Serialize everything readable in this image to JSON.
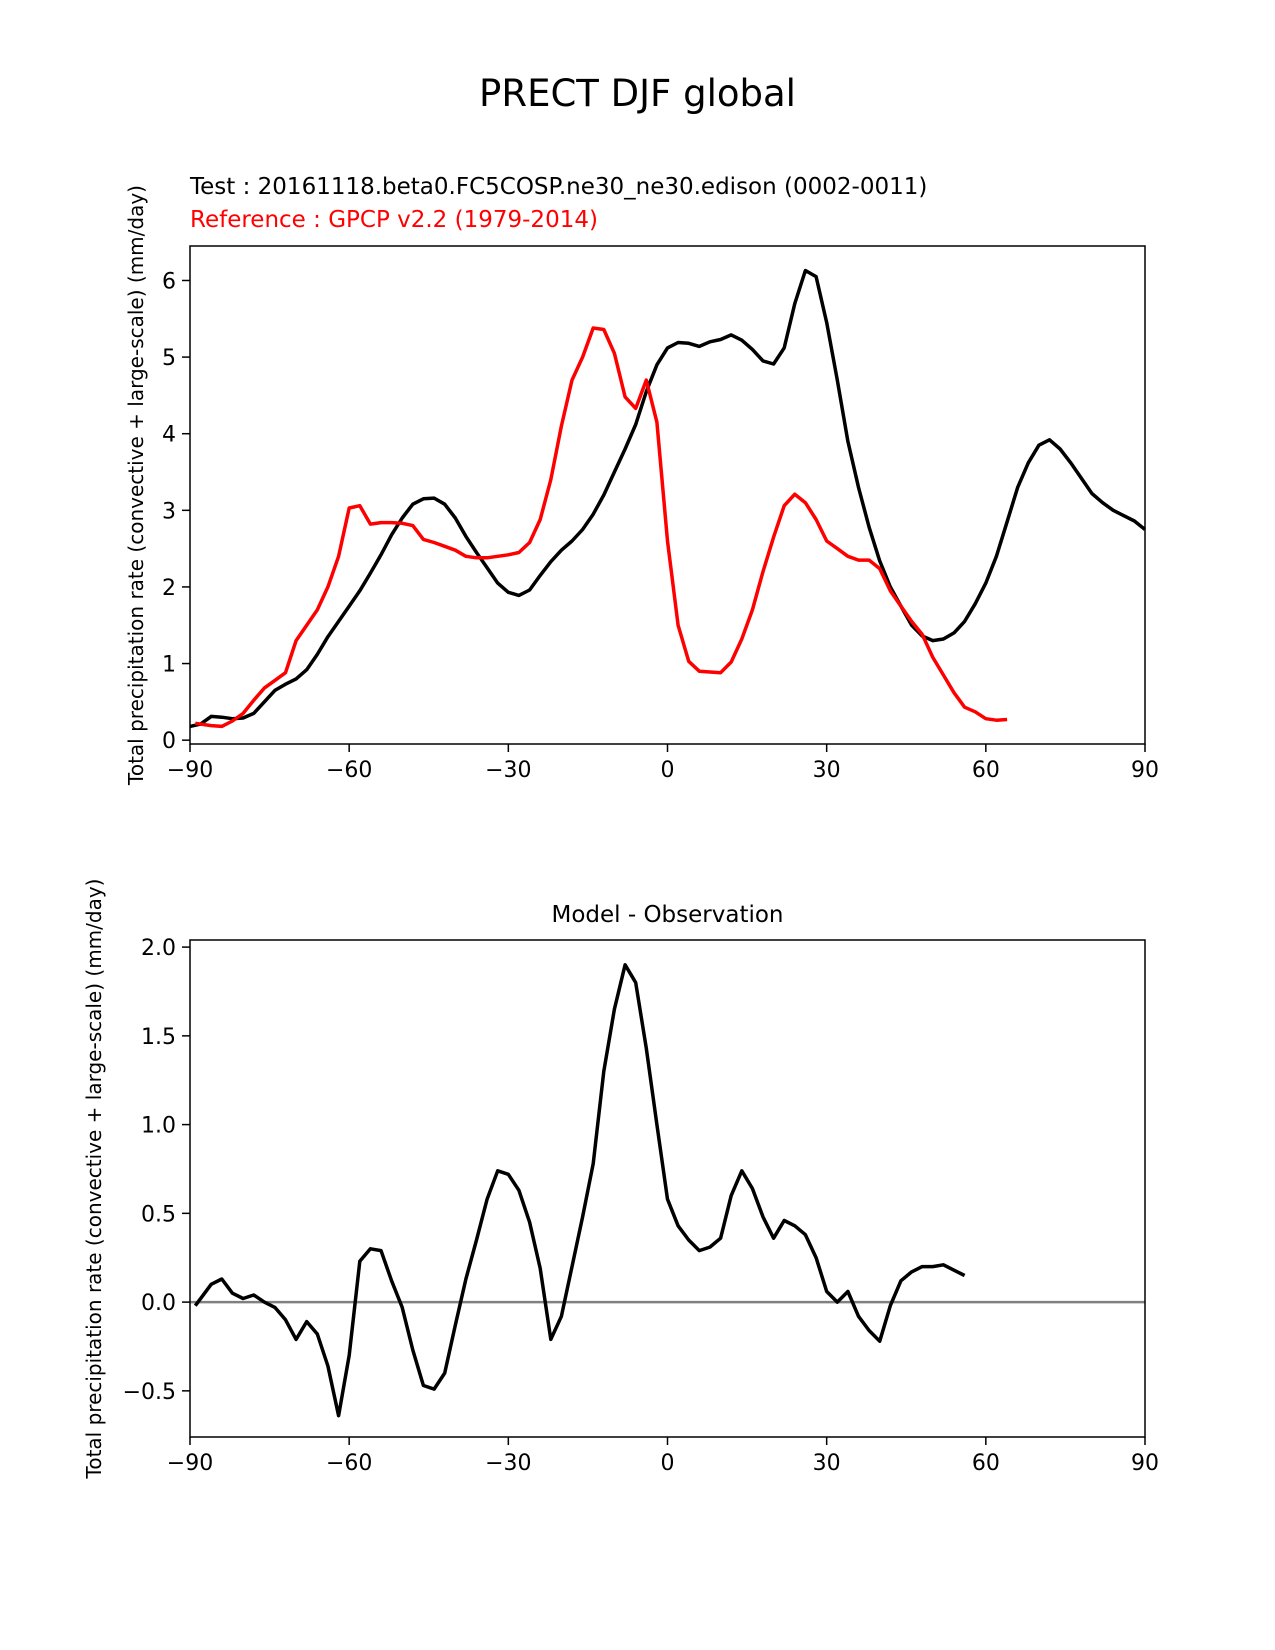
{
  "figure": {
    "title": "PRECT DJF global"
  },
  "chart_data": [
    {
      "type": "line",
      "test_label": "Test : 20161118.beta0.FC5COSP.ne30_ne30.edison (0002-0011)",
      "reference_label": "Reference : GPCP v2.2 (1979-2014)",
      "ylabel": "Total precipitation rate (convective + large-scale) (mm/day)",
      "xlim": [
        -90,
        90
      ],
      "ylim": [
        -0.05,
        6.45
      ],
      "xticks": [
        -90,
        -60,
        -30,
        0,
        30,
        60,
        90
      ],
      "xtick_labels": [
        "−90",
        "−60",
        "−30",
        "0",
        "30",
        "60",
        "90"
      ],
      "yticks": [
        0,
        1,
        2,
        3,
        4,
        5,
        6
      ],
      "ytick_labels": [
        "0",
        "1",
        "2",
        "3",
        "4",
        "5",
        "6"
      ],
      "grid": false,
      "series": [
        {
          "color": "#000000",
          "points": [
            [
              -90,
              0.18
            ],
            [
              -88,
              0.21
            ],
            [
              -86,
              0.31
            ],
            [
              -84,
              0.3
            ],
            [
              -82,
              0.28
            ],
            [
              -80,
              0.29
            ],
            [
              -78,
              0.35
            ],
            [
              -76,
              0.5
            ],
            [
              -74,
              0.65
            ],
            [
              -72,
              0.73
            ],
            [
              -70,
              0.8
            ],
            [
              -68,
              0.92
            ],
            [
              -66,
              1.12
            ],
            [
              -64,
              1.35
            ],
            [
              -62,
              1.55
            ],
            [
              -60,
              1.75
            ],
            [
              -58,
              1.95
            ],
            [
              -56,
              2.18
            ],
            [
              -54,
              2.42
            ],
            [
              -52,
              2.68
            ],
            [
              -50,
              2.9
            ],
            [
              -48,
              3.08
            ],
            [
              -46,
              3.15
            ],
            [
              -44,
              3.16
            ],
            [
              -42,
              3.08
            ],
            [
              -40,
              2.9
            ],
            [
              -38,
              2.66
            ],
            [
              -36,
              2.45
            ],
            [
              -34,
              2.25
            ],
            [
              -32,
              2.05
            ],
            [
              -30,
              1.93
            ],
            [
              -28,
              1.89
            ],
            [
              -26,
              1.96
            ],
            [
              -24,
              2.15
            ],
            [
              -22,
              2.33
            ],
            [
              -20,
              2.48
            ],
            [
              -18,
              2.6
            ],
            [
              -16,
              2.75
            ],
            [
              -14,
              2.95
            ],
            [
              -12,
              3.2
            ],
            [
              -10,
              3.5
            ],
            [
              -8,
              3.8
            ],
            [
              -6,
              4.12
            ],
            [
              -4,
              4.55
            ],
            [
              -2,
              4.9
            ],
            [
              0,
              5.12
            ],
            [
              2,
              5.19
            ],
            [
              4,
              5.18
            ],
            [
              6,
              5.14
            ],
            [
              8,
              5.2
            ],
            [
              10,
              5.23
            ],
            [
              12,
              5.29
            ],
            [
              14,
              5.22
            ],
            [
              16,
              5.1
            ],
            [
              18,
              4.95
            ],
            [
              20,
              4.91
            ],
            [
              22,
              5.12
            ],
            [
              24,
              5.7
            ],
            [
              26,
              6.13
            ],
            [
              28,
              6.05
            ],
            [
              30,
              5.45
            ],
            [
              32,
              4.7
            ],
            [
              34,
              3.9
            ],
            [
              36,
              3.3
            ],
            [
              38,
              2.78
            ],
            [
              40,
              2.34
            ],
            [
              42,
              2.0
            ],
            [
              44,
              1.75
            ],
            [
              46,
              1.5
            ],
            [
              48,
              1.36
            ],
            [
              50,
              1.3
            ],
            [
              52,
              1.32
            ],
            [
              54,
              1.4
            ],
            [
              56,
              1.55
            ],
            [
              58,
              1.78
            ],
            [
              60,
              2.05
            ],
            [
              62,
              2.4
            ],
            [
              64,
              2.85
            ],
            [
              66,
              3.3
            ],
            [
              68,
              3.62
            ],
            [
              70,
              3.85
            ],
            [
              72,
              3.92
            ],
            [
              74,
              3.8
            ],
            [
              76,
              3.62
            ],
            [
              78,
              3.42
            ],
            [
              80,
              3.22
            ],
            [
              82,
              3.1
            ],
            [
              84,
              3.0
            ],
            [
              86,
              2.93
            ],
            [
              88,
              2.86
            ],
            [
              90,
              2.75
            ]
          ]
        },
        {
          "color": "#ff0000",
          "points": [
            [
              -89,
              0.22
            ],
            [
              -86,
              0.19
            ],
            [
              -84,
              0.18
            ],
            [
              -82,
              0.25
            ],
            [
              -80,
              0.35
            ],
            [
              -78,
              0.52
            ],
            [
              -76,
              0.68
            ],
            [
              -74,
              0.78
            ],
            [
              -72,
              0.88
            ],
            [
              -70,
              1.3
            ],
            [
              -68,
              1.5
            ],
            [
              -66,
              1.7
            ],
            [
              -64,
              2.0
            ],
            [
              -62,
              2.4
            ],
            [
              -60,
              3.03
            ],
            [
              -58,
              3.06
            ],
            [
              -56,
              2.82
            ],
            [
              -54,
              2.84
            ],
            [
              -52,
              2.84
            ],
            [
              -50,
              2.83
            ],
            [
              -48,
              2.8
            ],
            [
              -46,
              2.62
            ],
            [
              -44,
              2.58
            ],
            [
              -42,
              2.53
            ],
            [
              -40,
              2.48
            ],
            [
              -38,
              2.4
            ],
            [
              -36,
              2.38
            ],
            [
              -34,
              2.38
            ],
            [
              -32,
              2.4
            ],
            [
              -30,
              2.42
            ],
            [
              -28,
              2.45
            ],
            [
              -26,
              2.58
            ],
            [
              -24,
              2.88
            ],
            [
              -22,
              3.4
            ],
            [
              -20,
              4.1
            ],
            [
              -18,
              4.7
            ],
            [
              -16,
              5.0
            ],
            [
              -14,
              5.38
            ],
            [
              -12,
              5.36
            ],
            [
              -10,
              5.05
            ],
            [
              -8,
              4.48
            ],
            [
              -6,
              4.33
            ],
            [
              -4,
              4.7
            ],
            [
              -2,
              4.15
            ],
            [
              0,
              2.6
            ],
            [
              2,
              1.5
            ],
            [
              4,
              1.03
            ],
            [
              6,
              0.9
            ],
            [
              8,
              0.89
            ],
            [
              10,
              0.88
            ],
            [
              12,
              1.02
            ],
            [
              14,
              1.32
            ],
            [
              16,
              1.7
            ],
            [
              18,
              2.2
            ],
            [
              20,
              2.65
            ],
            [
              22,
              3.06
            ],
            [
              24,
              3.21
            ],
            [
              26,
              3.1
            ],
            [
              28,
              2.88
            ],
            [
              30,
              2.6
            ],
            [
              32,
              2.5
            ],
            [
              34,
              2.4
            ],
            [
              36,
              2.35
            ],
            [
              38,
              2.35
            ],
            [
              40,
              2.24
            ],
            [
              42,
              1.95
            ],
            [
              44,
              1.75
            ],
            [
              46,
              1.55
            ],
            [
              48,
              1.38
            ],
            [
              50,
              1.08
            ],
            [
              52,
              0.85
            ],
            [
              54,
              0.62
            ],
            [
              56,
              0.43
            ],
            [
              58,
              0.37
            ],
            [
              60,
              0.28
            ],
            [
              62,
              0.26
            ],
            [
              64,
              0.27
            ]
          ]
        }
      ]
    },
    {
      "type": "line",
      "title": "Model - Observation",
      "ylabel": "Total precipitation rate (convective + large-scale) (mm/day)",
      "xlim": [
        -90,
        90
      ],
      "ylim": [
        -0.76,
        2.04
      ],
      "xticks": [
        -90,
        -60,
        -30,
        0,
        30,
        60,
        90
      ],
      "xtick_labels": [
        "−90",
        "−60",
        "−30",
        "0",
        "30",
        "60",
        "90"
      ],
      "yticks": [
        -0.5,
        0.0,
        0.5,
        1.0,
        1.5,
        2.0
      ],
      "ytick_labels": [
        "−0.5",
        "0.0",
        "0.5",
        "1.0",
        "1.5",
        "2.0"
      ],
      "grid": false,
      "zero_line_color": "#808080",
      "series": [
        {
          "color": "#000000",
          "points": [
            [
              -89,
              -0.02
            ],
            [
              -86,
              0.1
            ],
            [
              -84,
              0.13
            ],
            [
              -82,
              0.05
            ],
            [
              -80,
              0.02
            ],
            [
              -78,
              0.04
            ],
            [
              -76,
              0.0
            ],
            [
              -74,
              -0.03
            ],
            [
              -72,
              -0.1
            ],
            [
              -70,
              -0.21
            ],
            [
              -68,
              -0.11
            ],
            [
              -66,
              -0.18
            ],
            [
              -64,
              -0.36
            ],
            [
              -62,
              -0.64
            ],
            [
              -60,
              -0.3
            ],
            [
              -58,
              0.23
            ],
            [
              -56,
              0.3
            ],
            [
              -54,
              0.29
            ],
            [
              -52,
              0.12
            ],
            [
              -50,
              -0.03
            ],
            [
              -48,
              -0.27
            ],
            [
              -46,
              -0.47
            ],
            [
              -44,
              -0.49
            ],
            [
              -42,
              -0.4
            ],
            [
              -40,
              -0.13
            ],
            [
              -38,
              0.13
            ],
            [
              -36,
              0.35
            ],
            [
              -34,
              0.58
            ],
            [
              -32,
              0.74
            ],
            [
              -30,
              0.72
            ],
            [
              -28,
              0.63
            ],
            [
              -26,
              0.45
            ],
            [
              -24,
              0.19
            ],
            [
              -22,
              -0.21
            ],
            [
              -20,
              -0.08
            ],
            [
              -18,
              0.2
            ],
            [
              -16,
              0.48
            ],
            [
              -14,
              0.78
            ],
            [
              -12,
              1.3
            ],
            [
              -10,
              1.65
            ],
            [
              -8,
              1.9
            ],
            [
              -6,
              1.8
            ],
            [
              -4,
              1.43
            ],
            [
              -2,
              1.0
            ],
            [
              0,
              0.58
            ],
            [
              2,
              0.43
            ],
            [
              4,
              0.35
            ],
            [
              6,
              0.29
            ],
            [
              8,
              0.31
            ],
            [
              10,
              0.36
            ],
            [
              12,
              0.6
            ],
            [
              14,
              0.74
            ],
            [
              16,
              0.64
            ],
            [
              18,
              0.48
            ],
            [
              20,
              0.36
            ],
            [
              22,
              0.46
            ],
            [
              24,
              0.43
            ],
            [
              26,
              0.38
            ],
            [
              28,
              0.25
            ],
            [
              30,
              0.06
            ],
            [
              32,
              0.0
            ],
            [
              34,
              0.06
            ],
            [
              36,
              -0.08
            ],
            [
              38,
              -0.16
            ],
            [
              40,
              -0.22
            ],
            [
              42,
              -0.02
            ],
            [
              44,
              0.12
            ],
            [
              46,
              0.17
            ],
            [
              48,
              0.2
            ],
            [
              50,
              0.2
            ],
            [
              52,
              0.21
            ],
            [
              54,
              0.18
            ],
            [
              56,
              0.15
            ]
          ]
        }
      ]
    }
  ]
}
